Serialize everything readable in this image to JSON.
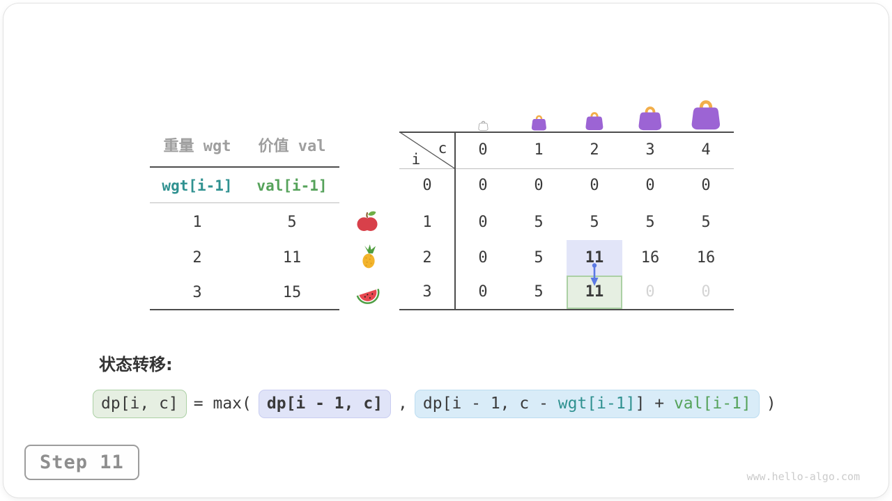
{
  "colors": {
    "ink": "#3a3a3a",
    "gray_label": "#9e9e9e",
    "teal": "#2f9190",
    "green": "#55a25a",
    "line_dark": "#4c4c4c",
    "line_light": "#bdbdbd",
    "hl_blue": "#e2e5f8",
    "hl_green_bg": "#e6efe2",
    "hl_green_border": "#abd0a4",
    "box_lav_bg": "#e0e4f8",
    "box_lav_border": "#c9cdf1",
    "box_blue_bg": "#d9ecf8",
    "box_blue_border": "#bcdcf0",
    "arrow_blue": "#5b79e3",
    "muted_zero": "#d4d4d4",
    "bag_purple": "#9c64d4",
    "bag_handle": "#f2ae4a"
  },
  "items_table": {
    "col_headers": [
      "重量 wgt",
      "价值 val"
    ],
    "sub_headers": [
      "wgt[i-1]",
      "val[i-1]"
    ],
    "rows": [
      [
        "1",
        "5"
      ],
      [
        "2",
        "11"
      ],
      [
        "3",
        "15"
      ]
    ],
    "fruit_icons": [
      "apple-icon",
      "pineapple-icon",
      "watermelon-icon"
    ]
  },
  "dp_table": {
    "corner_col_label": "c",
    "corner_row_label": "i",
    "col_headers": [
      "0",
      "1",
      "2",
      "3",
      "4"
    ],
    "row_headers": [
      "0",
      "1",
      "2",
      "3"
    ],
    "rows": [
      [
        "0",
        "0",
        "0",
        "0",
        "0"
      ],
      [
        "0",
        "5",
        "5",
        "5",
        "5"
      ],
      [
        "0",
        "5",
        "11",
        "16",
        "16"
      ],
      [
        "0",
        "5",
        "11",
        "0",
        "0"
      ]
    ],
    "bold_cells": [
      [
        2,
        2
      ],
      [
        3,
        2
      ]
    ],
    "gray_cells": [
      [
        3,
        3
      ],
      [
        3,
        4
      ]
    ],
    "blue_highlight_cell": [
      2,
      2
    ],
    "green_highlight_cell": [
      3,
      2
    ],
    "bag_icons": [
      "bag-outline-icon",
      "bag-small-icon",
      "bag-medium-icon",
      "bag-large-icon",
      "bag-xlarge-icon"
    ]
  },
  "formula": {
    "label": "状态转移:",
    "lhs": "dp[i, c]",
    "operator": "= max(",
    "arg1": "dp[i - 1, c]",
    "comma": ",",
    "arg2_prefix": "dp[i - 1, c - ",
    "arg2_wgt": "wgt[i-1]",
    "arg2_mid": "] + ",
    "arg2_val": "val[i-1]",
    "close": ")"
  },
  "step_badge": "Step 11",
  "watermark": "www.hello-algo.com"
}
